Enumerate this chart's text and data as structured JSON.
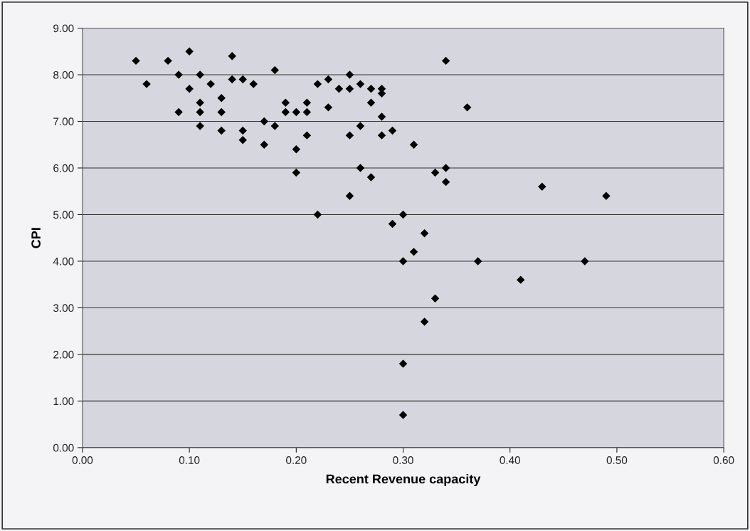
{
  "chart_data": {
    "type": "scatter",
    "xlabel": "Recent Revenue capacity",
    "ylabel": "CPI",
    "xlim": [
      0,
      0.6
    ],
    "xticks": [
      {
        "value": 0,
        "label": "0.00"
      },
      {
        "value": 0.1,
        "label": "0.10"
      },
      {
        "value": 0.2,
        "label": "0.20"
      },
      {
        "value": 0.3,
        "label": "0.30"
      },
      {
        "value": 0.4,
        "label": "0.40"
      },
      {
        "value": 0.5,
        "label": "0.50"
      },
      {
        "value": 0.6,
        "label": "0.60"
      }
    ],
    "ylim": [
      0,
      9
    ],
    "yticks": [
      {
        "value": 0,
        "label": "0.00"
      },
      {
        "value": 1,
        "label": "1.00"
      },
      {
        "value": 2,
        "label": "2.00"
      },
      {
        "value": 3,
        "label": "3.00"
      },
      {
        "value": 4,
        "label": "4.00"
      },
      {
        "value": 5,
        "label": "5.00"
      },
      {
        "value": 6,
        "label": "6.00"
      },
      {
        "value": 7,
        "label": "7.00"
      },
      {
        "value": 8,
        "label": "8.00"
      },
      {
        "value": 9,
        "label": "9.00"
      }
    ],
    "grid": "y",
    "marker": "diamond",
    "series": [
      {
        "color": "#000000",
        "x": [
          0.05,
          0.06,
          0.08,
          0.09,
          0.09,
          0.1,
          0.1,
          0.11,
          0.11,
          0.11,
          0.11,
          0.12,
          0.13,
          0.13,
          0.13,
          0.14,
          0.14,
          0.15,
          0.15,
          0.15,
          0.16,
          0.17,
          0.17,
          0.18,
          0.18,
          0.19,
          0.19,
          0.2,
          0.2,
          0.2,
          0.21,
          0.21,
          0.21,
          0.22,
          0.22,
          0.23,
          0.23,
          0.24,
          0.25,
          0.25,
          0.25,
          0.25,
          0.26,
          0.26,
          0.26,
          0.27,
          0.27,
          0.27,
          0.28,
          0.28,
          0.28,
          0.28,
          0.29,
          0.29,
          0.3,
          0.3,
          0.3,
          0.3,
          0.31,
          0.31,
          0.32,
          0.32,
          0.33,
          0.33,
          0.34,
          0.34,
          0.34,
          0.36,
          0.37,
          0.41,
          0.43,
          0.47,
          0.49
        ],
        "values": [
          8.3,
          7.8,
          8.3,
          8.0,
          7.2,
          8.5,
          7.7,
          8.0,
          7.4,
          7.2,
          6.9,
          7.8,
          7.5,
          7.2,
          6.8,
          8.4,
          7.9,
          7.9,
          6.8,
          6.6,
          7.8,
          7.0,
          6.5,
          8.1,
          6.9,
          7.4,
          7.2,
          7.2,
          6.4,
          5.9,
          7.4,
          7.2,
          6.7,
          7.8,
          5.0,
          7.9,
          7.3,
          7.7,
          8.0,
          7.7,
          6.7,
          5.4,
          7.8,
          6.9,
          6.0,
          7.7,
          7.4,
          5.8,
          7.7,
          7.6,
          7.1,
          6.7,
          6.8,
          4.8,
          5.0,
          4.0,
          1.8,
          0.7,
          6.5,
          4.2,
          4.6,
          2.7,
          5.9,
          3.2,
          8.3,
          6.0,
          5.7,
          7.3,
          4.0,
          3.6,
          5.6,
          4.0,
          5.4
        ]
      }
    ]
  }
}
